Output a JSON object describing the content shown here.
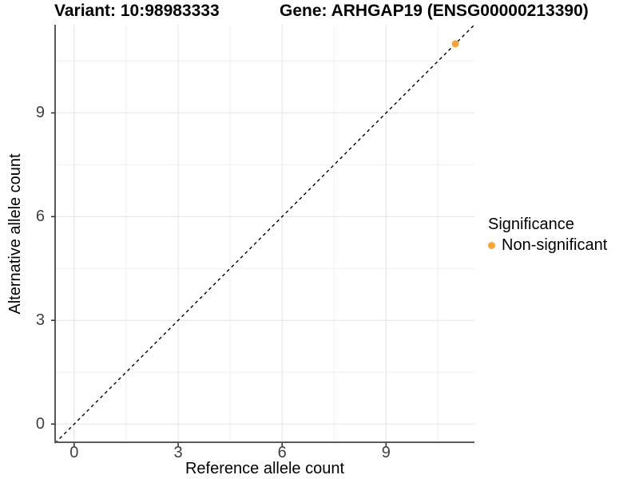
{
  "figure": {
    "title_left": "Variant: 10:98983333",
    "title_right": "Gene: ARHGAP19 (ENSG00000213390)"
  },
  "chart_data": {
    "type": "scatter",
    "title_left": "Variant: 10:98983333",
    "title_right": "Gene: ARHGAP19 (ENSG00000213390)",
    "xlabel": "Reference allele count",
    "ylabel": "Alternative allele count",
    "xlim": [
      -0.55,
      11.55
    ],
    "ylim": [
      -0.55,
      11.55
    ],
    "x_ticks": [
      0,
      3,
      6,
      9
    ],
    "y_ticks": [
      0,
      3,
      6,
      9
    ],
    "x_minor_gridlines": [
      1.5,
      4.5,
      7.5,
      10.5
    ],
    "y_minor_gridlines": [
      1.5,
      4.5,
      7.5,
      10.5
    ],
    "grid": "major+minor",
    "reference_line": {
      "type": "identity y=x",
      "style": "dashed",
      "color": "#000000"
    },
    "series": [
      {
        "name": "Non-significant",
        "color": "#FAA43A",
        "marker": "circle",
        "points": [
          {
            "x": 11,
            "y": 11
          }
        ]
      }
    ],
    "legend": {
      "title": "Significance",
      "position": "right",
      "entries": [
        {
          "label": "Non-significant",
          "color": "#FAA43A",
          "marker": "circle"
        }
      ]
    }
  },
  "style": {
    "grid_major_color": "#E3E3E3",
    "grid_minor_color": "#EFEFEF",
    "axis_line_color": "#5A5A5A",
    "tick_color": "#333333",
    "tick_label_color": "#404040",
    "point_color": "#FAA43A",
    "point_radius": 4.5
  }
}
